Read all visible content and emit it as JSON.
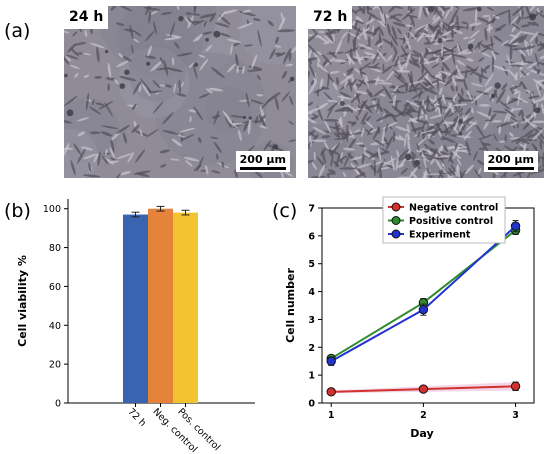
{
  "panels": {
    "a": "(a)",
    "b": "(b)",
    "c": "(c)"
  },
  "micrographs": [
    {
      "label": "24 h",
      "scale": "200 µm"
    },
    {
      "label": "72 h",
      "scale": "200 µm"
    }
  ],
  "chart_data": [
    {
      "type": "bar",
      "categories": [
        "72 h",
        "Neg. control",
        "Pos. control"
      ],
      "values": [
        97,
        100,
        98
      ],
      "errors": [
        1.2,
        1.2,
        1.2
      ],
      "colors": [
        "#3a64b0",
        "#e5833a",
        "#f2c431"
      ],
      "ylabel": "Cell viability %",
      "ylim": [
        0,
        105
      ],
      "yticks": [
        0,
        20,
        40,
        60,
        80,
        100
      ]
    },
    {
      "type": "line",
      "x": [
        1,
        2,
        3
      ],
      "series": [
        {
          "name": "Negative control",
          "values": [
            0.4,
            0.5,
            0.6
          ],
          "errors": [
            0.05,
            0.1,
            0.15
          ],
          "color": "#d2322d"
        },
        {
          "name": "Positive control",
          "values": [
            1.6,
            3.6,
            6.2
          ],
          "errors": [
            0.1,
            0.15,
            0.15
          ],
          "color": "#2e8b2e"
        },
        {
          "name": "Experiment",
          "values": [
            1.5,
            3.35,
            6.35
          ],
          "errors": [
            0.15,
            0.2,
            0.2
          ],
          "color": "#2233d0"
        }
      ],
      "xlabel": "Day",
      "ylabel": "Cell number",
      "xlim": [
        0.9,
        3.2
      ],
      "ylim": [
        0,
        7
      ],
      "xticks": [
        1,
        2,
        3
      ],
      "yticks": [
        0,
        1,
        2,
        3,
        4,
        5,
        6,
        7
      ],
      "legend": "top-center"
    }
  ]
}
